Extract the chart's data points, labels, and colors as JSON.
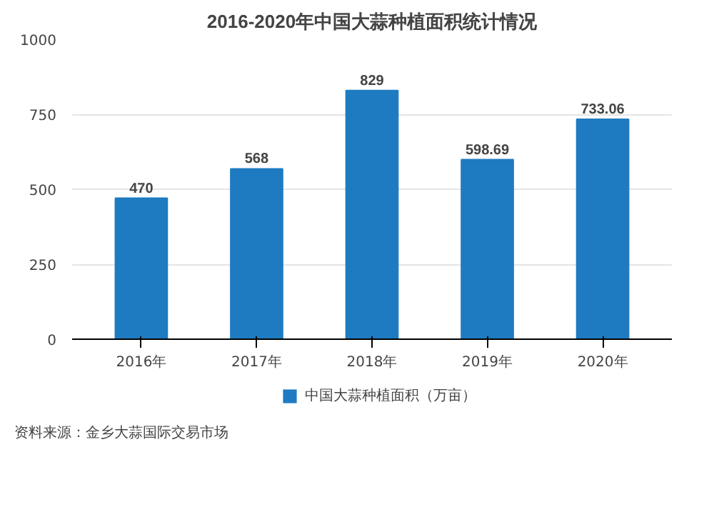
{
  "chart_data": {
    "type": "bar",
    "title": "2016-2020年中国大蒜种植面积统计情况",
    "categories": [
      "2016年",
      "2017年",
      "2018年",
      "2019年",
      "2020年"
    ],
    "series": [
      {
        "name": "中国大蒜种植面积（万亩）",
        "color": "#1f7bc1",
        "values": [
          470,
          568,
          829,
          598.69,
          733.06
        ]
      }
    ],
    "ylim": [
      0,
      1000
    ],
    "yticks": [
      0,
      250,
      500,
      750,
      1000
    ],
    "grid": "y",
    "legend": "bottom",
    "data_labels": true,
    "annotations": [
      "资料来源：金乡大蒜国际交易市场"
    ]
  }
}
